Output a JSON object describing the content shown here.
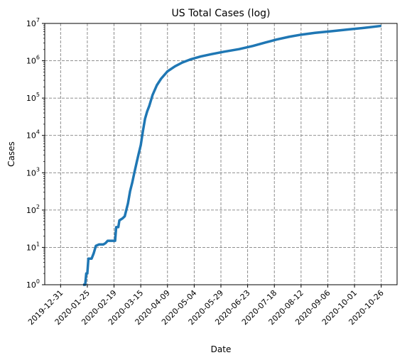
{
  "chart_data": {
    "type": "line",
    "title": "US Total Cases (log)",
    "xlabel": "Date",
    "ylabel": "Cases",
    "yscale": "log",
    "ylim": [
      1,
      10000000
    ],
    "xlim": [
      "2019-12-31",
      "2020-10-26"
    ],
    "grid": true,
    "grid_style": "dashed",
    "x_tick_labels": [
      "2019-12-31",
      "2020-01-25",
      "2020-02-19",
      "2020-03-15",
      "2020-04-09",
      "2020-05-04",
      "2020-05-29",
      "2020-06-23",
      "2020-07-18",
      "2020-08-12",
      "2020-09-06",
      "2020-10-01",
      "2020-10-26"
    ],
    "y_ticks": [
      {
        "value": 1,
        "base": "10",
        "exp": "0"
      },
      {
        "value": 10,
        "base": "10",
        "exp": "1"
      },
      {
        "value": 100,
        "base": "10",
        "exp": "2"
      },
      {
        "value": 1000,
        "base": "10",
        "exp": "3"
      },
      {
        "value": 10000,
        "base": "10",
        "exp": "4"
      },
      {
        "value": 100000,
        "base": "10",
        "exp": "5"
      },
      {
        "value": 1000000,
        "base": "10",
        "exp": "6"
      },
      {
        "value": 10000000,
        "base": "10",
        "exp": "7"
      }
    ],
    "series": [
      {
        "color": "#1f77b4",
        "points": [
          [
            "2020-01-21",
            1
          ],
          [
            "2020-01-23",
            1
          ],
          [
            "2020-01-24",
            2
          ],
          [
            "2020-01-25",
            2
          ],
          [
            "2020-01-26",
            5
          ],
          [
            "2020-01-29",
            5
          ],
          [
            "2020-01-31",
            7
          ],
          [
            "2020-02-02",
            11
          ],
          [
            "2020-02-05",
            12
          ],
          [
            "2020-02-09",
            12
          ],
          [
            "2020-02-11",
            13
          ],
          [
            "2020-02-13",
            15
          ],
          [
            "2020-02-20",
            15
          ],
          [
            "2020-02-21",
            35
          ],
          [
            "2020-02-23",
            35
          ],
          [
            "2020-02-24",
            53
          ],
          [
            "2020-02-27",
            60
          ],
          [
            "2020-02-29",
            68
          ],
          [
            "2020-03-01",
            89
          ],
          [
            "2020-03-03",
            150
          ],
          [
            "2020-03-05",
            320
          ],
          [
            "2020-03-07",
            540
          ],
          [
            "2020-03-09",
            1000
          ],
          [
            "2020-03-11",
            1800
          ],
          [
            "2020-03-13",
            3200
          ],
          [
            "2020-03-15",
            5500
          ],
          [
            "2020-03-17",
            13000
          ],
          [
            "2020-03-19",
            28000
          ],
          [
            "2020-03-21",
            44000
          ],
          [
            "2020-03-23",
            62000
          ],
          [
            "2020-03-26",
            120000
          ],
          [
            "2020-03-30",
            220000
          ],
          [
            "2020-04-03",
            330000
          ],
          [
            "2020-04-09",
            520000
          ],
          [
            "2020-04-16",
            710000
          ],
          [
            "2020-04-23",
            900000
          ],
          [
            "2020-05-01",
            1100000
          ],
          [
            "2020-05-10",
            1300000
          ],
          [
            "2020-05-20",
            1500000
          ],
          [
            "2020-06-01",
            1750000
          ],
          [
            "2020-06-15",
            2050000
          ],
          [
            "2020-06-28",
            2500000
          ],
          [
            "2020-07-10",
            3100000
          ],
          [
            "2020-07-20",
            3700000
          ],
          [
            "2020-08-01",
            4400000
          ],
          [
            "2020-08-12",
            5000000
          ],
          [
            "2020-08-25",
            5600000
          ],
          [
            "2020-09-10",
            6200000
          ],
          [
            "2020-09-25",
            6900000
          ],
          [
            "2020-10-10",
            7600000
          ],
          [
            "2020-10-26",
            8600000
          ]
        ]
      }
    ]
  }
}
